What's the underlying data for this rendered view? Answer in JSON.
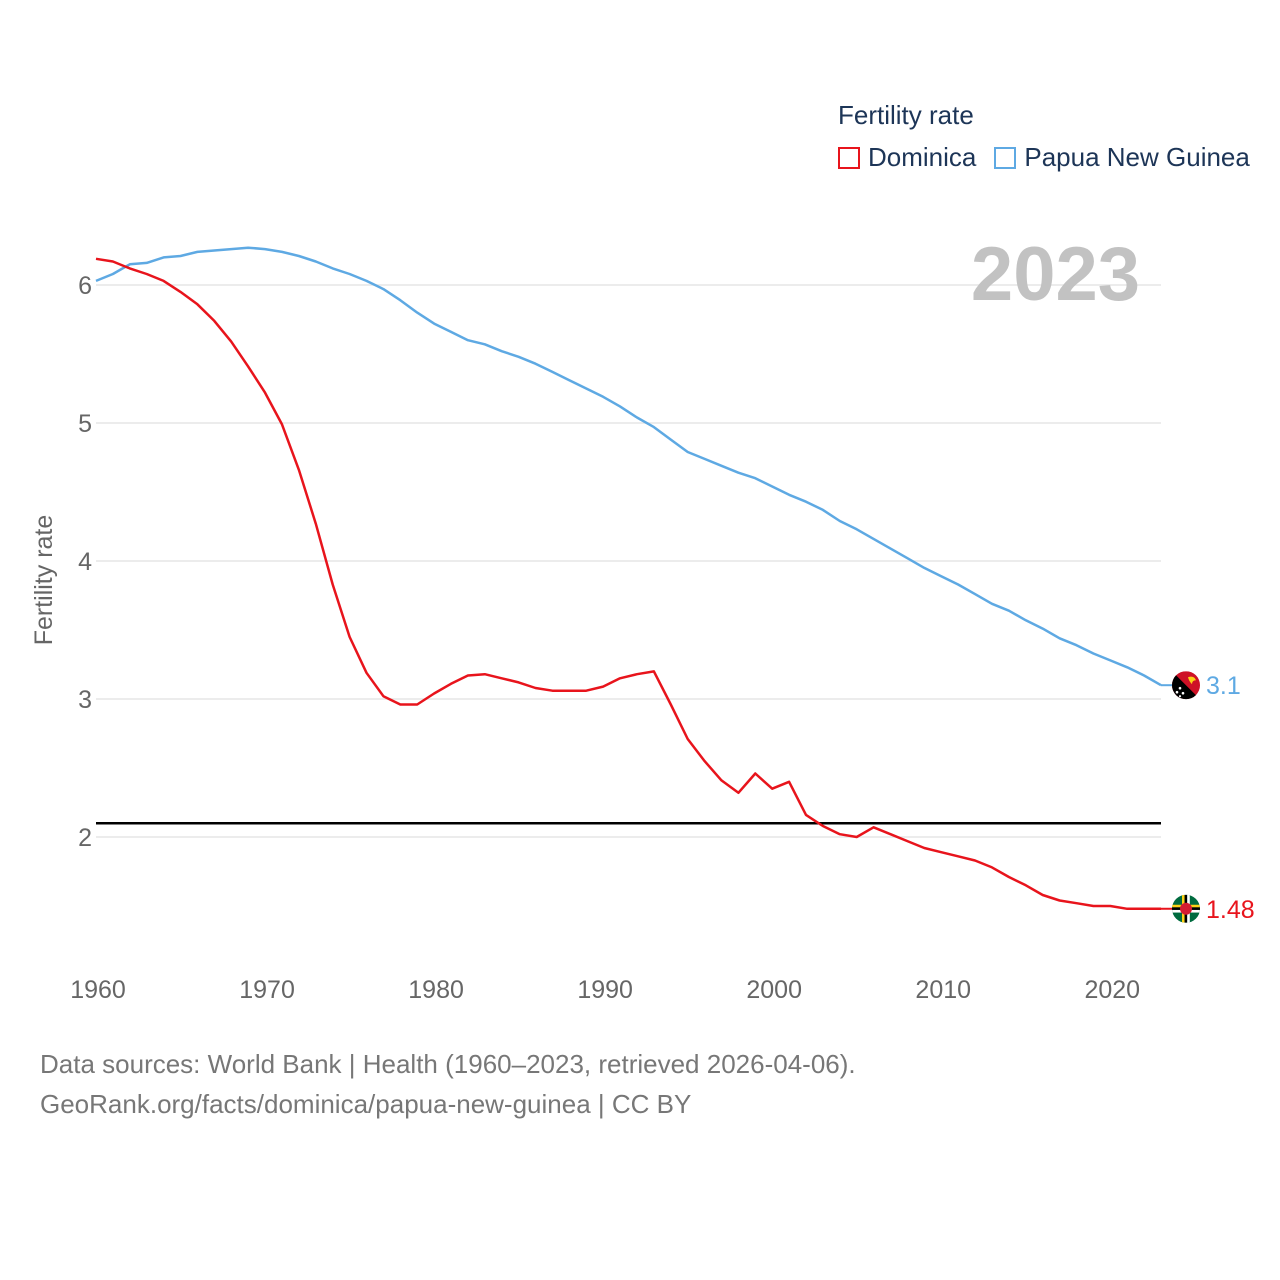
{
  "legend": {
    "title": "Fertility rate"
  },
  "footer": {
    "line1": "Data sources: World Bank | Health (1960–2023, retrieved 2026-04-06).",
    "line2": "GeoRank.org/facts/dominica/papua-new-guinea | CC BY"
  },
  "chart_data": {
    "type": "line",
    "title": "",
    "year_label": "2023",
    "xlabel": "",
    "ylabel": "Fertility rate",
    "xlim": [
      1960,
      2023
    ],
    "ylim": [
      1.1,
      6.6
    ],
    "xticks": [
      1960,
      1970,
      1980,
      1990,
      2000,
      2010,
      2020
    ],
    "yticks": [
      2,
      3,
      4,
      5,
      6
    ],
    "reference_line": 2.1,
    "grid": true,
    "legend_position": "top-right",
    "series": [
      {
        "name": "Dominica",
        "color": "#e8141c",
        "end_label": "1.48",
        "x": [
          1960,
          1961,
          1962,
          1963,
          1964,
          1965,
          1966,
          1967,
          1968,
          1969,
          1970,
          1971,
          1972,
          1973,
          1974,
          1975,
          1976,
          1977,
          1978,
          1979,
          1980,
          1981,
          1982,
          1983,
          1984,
          1985,
          1986,
          1987,
          1988,
          1989,
          1990,
          1991,
          1992,
          1993,
          1994,
          1995,
          1996,
          1997,
          1998,
          1999,
          2000,
          2001,
          2002,
          2003,
          2004,
          2005,
          2006,
          2007,
          2008,
          2009,
          2010,
          2011,
          2012,
          2013,
          2014,
          2015,
          2016,
          2017,
          2018,
          2019,
          2020,
          2021,
          2022,
          2023
        ],
        "values": [
          6.19,
          6.17,
          6.12,
          6.08,
          6.03,
          5.95,
          5.86,
          5.74,
          5.59,
          5.41,
          5.22,
          4.99,
          4.66,
          4.27,
          3.83,
          3.45,
          3.19,
          3.02,
          2.96,
          2.96,
          3.04,
          3.11,
          3.17,
          3.18,
          3.15,
          3.12,
          3.08,
          3.06,
          3.06,
          3.06,
          3.09,
          3.15,
          3.18,
          3.2,
          2.96,
          2.71,
          2.55,
          2.41,
          2.32,
          2.46,
          2.35,
          2.4,
          2.16,
          2.08,
          2.02,
          2.0,
          2.07,
          2.02,
          1.97,
          1.92,
          1.89,
          1.86,
          1.83,
          1.78,
          1.71,
          1.65,
          1.58,
          1.54,
          1.52,
          1.5,
          1.5,
          1.48,
          1.48,
          1.48
        ]
      },
      {
        "name": "Papua New Guinea",
        "color": "#5ea9e3",
        "end_label": "3.1",
        "x": [
          1960,
          1961,
          1962,
          1963,
          1964,
          1965,
          1966,
          1967,
          1968,
          1969,
          1970,
          1971,
          1972,
          1973,
          1974,
          1975,
          1976,
          1977,
          1978,
          1979,
          1980,
          1981,
          1982,
          1983,
          1984,
          1985,
          1986,
          1987,
          1988,
          1989,
          1990,
          1991,
          1992,
          1993,
          1994,
          1995,
          1996,
          1997,
          1998,
          1999,
          2000,
          2001,
          2002,
          2003,
          2004,
          2005,
          2006,
          2007,
          2008,
          2009,
          2010,
          2011,
          2012,
          2013,
          2014,
          2015,
          2016,
          2017,
          2018,
          2019,
          2020,
          2021,
          2022,
          2023
        ],
        "values": [
          6.03,
          6.08,
          6.15,
          6.16,
          6.2,
          6.21,
          6.24,
          6.25,
          6.26,
          6.27,
          6.26,
          6.24,
          6.21,
          6.17,
          6.12,
          6.08,
          6.03,
          5.97,
          5.89,
          5.8,
          5.72,
          5.66,
          5.6,
          5.57,
          5.52,
          5.48,
          5.43,
          5.37,
          5.31,
          5.25,
          5.19,
          5.12,
          5.04,
          4.97,
          4.88,
          4.79,
          4.74,
          4.69,
          4.64,
          4.6,
          4.54,
          4.48,
          4.43,
          4.37,
          4.29,
          4.23,
          4.16,
          4.09,
          4.02,
          3.95,
          3.89,
          3.83,
          3.76,
          3.69,
          3.64,
          3.57,
          3.51,
          3.44,
          3.39,
          3.33,
          3.28,
          3.23,
          3.17,
          3.1
        ]
      }
    ]
  }
}
